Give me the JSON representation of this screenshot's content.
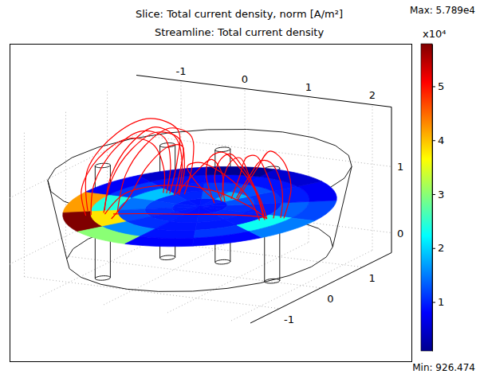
{
  "chart_data": {
    "type": "slice",
    "title": "Slice: Total current density, norm [A/m²]",
    "subtitle": "Streamline: Total current density",
    "grid": true,
    "xlim": [
      -1.7,
      2.3
    ],
    "xticks": [
      -1,
      0,
      1,
      2
    ],
    "ylim": [
      -1.7,
      1.7
    ],
    "yticks": [
      -1,
      0,
      1
    ],
    "zlim": [
      -0.3,
      1.9
    ],
    "zticks": [
      0,
      1
    ],
    "domain": {
      "center": [
        0.4,
        0
      ],
      "radius_top": 2.0,
      "radius_bottom": 1.75,
      "zlim": [
        0,
        1.2
      ]
    },
    "electrodes": [
      {
        "x": -0.6,
        "y": -0.8
      },
      {
        "x": -0.3,
        "y": 0.3
      },
      {
        "x": 0.5,
        "y": 0.4
      },
      {
        "x": 1.6,
        "y": -0.1
      }
    ],
    "electrode_radius": 0.1,
    "electrode_zlim": [
      -0.25,
      1.45
    ],
    "slice": {
      "center": [
        0.4,
        0
      ],
      "z": 0.7,
      "radius": 1.8,
      "values": [
        [
          9000,
          9200,
          9800,
          9500,
          9100,
          9400,
          9700,
          9600,
          9300,
          8900,
          8800,
          8900
        ],
        [
          10500,
          12500,
          18000,
          13000,
          10000,
          11000,
          11500,
          10500,
          9800,
          9500,
          9800,
          10200
        ],
        [
          9800,
          10800,
          12500,
          11000,
          9500,
          19000,
          14500,
          12000,
          10500,
          9200,
          9400,
          9600
        ],
        [
          13500,
          9500,
          9000,
          8500,
          8800,
          11000,
          24000,
          38000,
          16000,
          9000,
          11000,
          23000
        ],
        [
          12000,
          7500,
          5200,
          926.474,
          4800,
          7600,
          42000,
          57890,
          30000,
          8000,
          8200,
          15000
        ]
      ]
    },
    "streamlines": [
      {
        "x": [
          -0.7,
          -0.8,
          -0.7,
          -0.5,
          -0.3,
          -0.2,
          -0.2
        ],
        "y": [
          -0.6,
          -0.3,
          0.0,
          0.3,
          0.5,
          0.5,
          0.4
        ],
        "z": [
          0.7,
          1.1,
          1.5,
          1.7,
          1.5,
          1.1,
          0.7
        ]
      },
      {
        "x": [
          -0.5,
          -0.5,
          -0.4,
          -0.2,
          0.0,
          0.0,
          -0.1
        ],
        "y": [
          -0.6,
          -0.4,
          -0.1,
          0.2,
          0.4,
          0.45,
          0.4
        ],
        "z": [
          0.7,
          1.2,
          1.55,
          1.75,
          1.6,
          1.2,
          0.7
        ]
      },
      {
        "x": [
          -0.8,
          -1.0,
          -1.0,
          -0.8,
          -0.6,
          -0.45,
          -0.4
        ],
        "y": [
          -0.9,
          -0.7,
          -0.3,
          0.1,
          0.4,
          0.45,
          0.35
        ],
        "z": [
          0.7,
          1.0,
          1.35,
          1.55,
          1.4,
          1.0,
          0.7
        ]
      },
      {
        "x": [
          -0.4,
          -0.2,
          -0.1,
          0.0,
          0.0,
          -0.1,
          -0.2
        ],
        "y": [
          -0.9,
          -0.8,
          -0.5,
          -0.1,
          0.2,
          0.3,
          0.3
        ],
        "z": [
          0.7,
          1.0,
          1.4,
          1.6,
          1.5,
          1.1,
          0.7
        ]
      },
      {
        "x": [
          -0.6,
          -0.8,
          -0.7,
          -0.5,
          -0.35,
          -0.3
        ],
        "y": [
          -0.6,
          -0.4,
          -0.1,
          0.15,
          0.3,
          0.3
        ],
        "z": [
          0.7,
          0.45,
          0.3,
          0.35,
          0.55,
          0.7
        ]
      },
      {
        "x": [
          -0.9,
          -1.1,
          -0.9,
          -0.6,
          -0.3,
          -0.25,
          -0.3
        ],
        "y": [
          -0.7,
          -0.4,
          0.0,
          0.35,
          0.55,
          0.45,
          0.35
        ],
        "z": [
          0.7,
          1.2,
          1.65,
          1.8,
          1.6,
          1.15,
          0.7
        ]
      },
      {
        "x": [
          -0.65,
          -0.65,
          -0.55,
          -0.35,
          -0.15,
          -0.1,
          -0.15
        ],
        "y": [
          -0.7,
          -0.5,
          -0.2,
          0.1,
          0.35,
          0.4,
          0.35
        ],
        "z": [
          0.7,
          1.15,
          1.5,
          1.7,
          1.55,
          1.1,
          0.7
        ]
      },
      {
        "x": [
          -0.75,
          -0.9,
          -0.85,
          -0.65,
          -0.45,
          -0.35,
          -0.35
        ],
        "y": [
          -0.85,
          -0.55,
          -0.15,
          0.2,
          0.45,
          0.45,
          0.35
        ],
        "z": [
          0.7,
          1.05,
          1.45,
          1.65,
          1.5,
          1.1,
          0.7
        ]
      },
      {
        "x": [
          -0.55,
          -0.7,
          -0.55,
          -0.35,
          -0.25
        ],
        "y": [
          -0.75,
          -0.55,
          -0.2,
          0.1,
          0.3
        ],
        "z": [
          0.7,
          0.4,
          0.2,
          0.3,
          0.7
        ]
      },
      {
        "x": [
          0.6,
          0.7,
          0.9,
          1.1,
          1.3,
          1.45,
          1.5
        ],
        "y": [
          0.3,
          0.1,
          0.0,
          -0.1,
          -0.2,
          -0.2,
          -0.15
        ],
        "z": [
          0.7,
          1.1,
          1.45,
          1.55,
          1.35,
          1.0,
          0.7
        ]
      },
      {
        "x": [
          0.5,
          0.5,
          0.7,
          1.0,
          1.3,
          1.5,
          1.55
        ],
        "y": [
          0.2,
          0.0,
          -0.2,
          -0.35,
          -0.4,
          -0.3,
          -0.2
        ],
        "z": [
          0.7,
          1.2,
          1.55,
          1.7,
          1.5,
          1.1,
          0.7
        ]
      },
      {
        "x": [
          0.65,
          0.85,
          1.1,
          1.35,
          1.6,
          1.7,
          1.7
        ],
        "y": [
          0.5,
          0.5,
          0.4,
          0.25,
          0.1,
          0.0,
          -0.05
        ],
        "z": [
          0.7,
          1.05,
          1.35,
          1.4,
          1.2,
          0.95,
          0.7
        ]
      },
      {
        "x": [
          0.4,
          0.3,
          0.4,
          0.8,
          1.2,
          1.45,
          1.5
        ],
        "y": [
          0.35,
          0.1,
          -0.3,
          -0.6,
          -0.6,
          -0.4,
          -0.25
        ],
        "z": [
          0.7,
          1.0,
          1.4,
          1.6,
          1.45,
          1.05,
          0.7
        ]
      },
      {
        "x": [
          0.55,
          0.8,
          1.1,
          1.35,
          1.5
        ],
        "y": [
          0.35,
          0.2,
          0.05,
          -0.05,
          -0.1
        ],
        "z": [
          0.7,
          0.45,
          0.35,
          0.45,
          0.7
        ]
      },
      {
        "x": [
          0.7,
          1.0,
          1.3,
          1.6,
          1.8,
          1.75
        ],
        "y": [
          0.45,
          0.45,
          0.3,
          0.15,
          0.05,
          -0.05
        ],
        "z": [
          0.7,
          1.2,
          1.55,
          1.5,
          1.15,
          0.7
        ]
      },
      {
        "x": [
          0.55,
          0.6,
          0.8,
          1.05,
          1.3,
          1.5,
          1.55
        ],
        "y": [
          0.3,
          0.05,
          -0.1,
          -0.25,
          -0.3,
          -0.25,
          -0.15
        ],
        "z": [
          0.7,
          1.15,
          1.5,
          1.65,
          1.45,
          1.05,
          0.7
        ]
      },
      {
        "x": [
          0.6,
          0.8,
          1.0,
          1.25,
          1.5,
          1.65,
          1.62
        ],
        "y": [
          0.45,
          0.35,
          0.2,
          0.05,
          -0.05,
          -0.1,
          -0.1
        ],
        "z": [
          0.7,
          1.1,
          1.45,
          1.55,
          1.3,
          0.95,
          0.7
        ]
      },
      {
        "x": [
          -0.2,
          0.0,
          0.2,
          0.4,
          0.45
        ],
        "y": [
          0.35,
          0.5,
          0.6,
          0.55,
          0.45
        ],
        "z": [
          0.7,
          1.0,
          1.2,
          1.0,
          0.7
        ]
      },
      {
        "x": [
          -0.6,
          -0.2,
          0.4,
          1.0,
          1.4,
          1.55
        ],
        "y": [
          -0.75,
          -0.9,
          -0.9,
          -0.6,
          -0.3,
          -0.15
        ],
        "z": [
          0.7,
          1.1,
          1.3,
          1.2,
          0.9,
          0.7
        ]
      },
      {
        "x": [
          -0.5,
          -0.1,
          0.5,
          1.1,
          1.5
        ],
        "y": [
          -0.7,
          -0.6,
          -0.4,
          -0.2,
          -0.1
        ],
        "z": [
          0.7,
          0.72,
          0.72,
          0.72,
          0.7
        ]
      }
    ],
    "colorbar": {
      "range": [
        926.474,
        57890
      ],
      "ticks": [
        {
          "value": 10000,
          "label": "1"
        },
        {
          "value": 20000,
          "label": "2"
        },
        {
          "value": 30000,
          "label": "3"
        },
        {
          "value": 40000,
          "label": "4"
        },
        {
          "value": 50000,
          "label": "5"
        }
      ],
      "scale_label": "x10⁴",
      "max_label": "Max: 5.789e4",
      "min_label": "Min: 926.474"
    }
  }
}
